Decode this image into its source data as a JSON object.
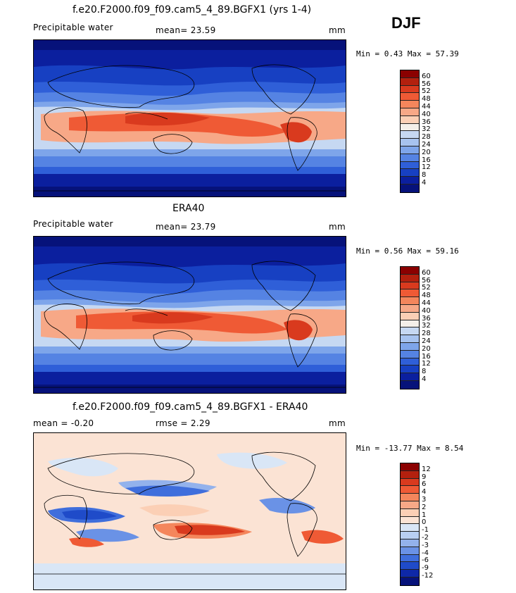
{
  "season": "DJF",
  "panels": [
    {
      "title": "f.e20.F2000.f09_f09.cam5_4_89.BGFX1 (yrs 1-4)",
      "left_label": "Precipitable water",
      "mid_label": "mean=   23.59",
      "right_label": "mm",
      "minmax": "Min =    0.43 Max =   57.39",
      "colorbar_labels": [
        "60",
        "56",
        "52",
        "48",
        "44",
        "40",
        "36",
        "32",
        "28",
        "24",
        "20",
        "16",
        "12",
        "8",
        "4"
      ],
      "colorbar_colors": [
        "#8b0000",
        "#b3200e",
        "#d93a1e",
        "#ef5a35",
        "#f4865c",
        "#f7a887",
        "#fbcfb5",
        "#f4efe9",
        "#c6d8f2",
        "#a7c3ef",
        "#7ea5ea",
        "#5583e3",
        "#2f5fd8",
        "#1740c2",
        "#0b1f9e",
        "#06127a"
      ]
    },
    {
      "title": "ERA40",
      "left_label": "Precipitable water",
      "mid_label": "mean=   23.79",
      "right_label": "mm",
      "minmax": "Min =    0.56 Max =   59.16",
      "colorbar_labels": [
        "60",
        "56",
        "52",
        "48",
        "44",
        "40",
        "36",
        "32",
        "28",
        "24",
        "20",
        "16",
        "12",
        "8",
        "4"
      ],
      "colorbar_colors": [
        "#8b0000",
        "#b3200e",
        "#d93a1e",
        "#ef5a35",
        "#f4865c",
        "#f7a887",
        "#fbcfb5",
        "#f4efe9",
        "#c6d8f2",
        "#a7c3ef",
        "#7ea5ea",
        "#5583e3",
        "#2f5fd8",
        "#1740c2",
        "#0b1f9e",
        "#06127a"
      ]
    },
    {
      "title": "f.e20.F2000.f09_f09.cam5_4_89.BGFX1 - ERA40",
      "left_label": "mean =   -0.20",
      "mid_label": "rmse =    2.29",
      "right_label": "mm",
      "minmax": "Min = -13.77 Max =    8.54",
      "colorbar_labels": [
        "12",
        "9",
        "6",
        "4",
        "3",
        "2",
        "1",
        "0",
        "-1",
        "-2",
        "-3",
        "-4",
        "-6",
        "-9",
        "-12"
      ],
      "colorbar_colors": [
        "#8b0000",
        "#b3200e",
        "#d93a1e",
        "#ef5a35",
        "#f4865c",
        "#f7a887",
        "#fbcfb5",
        "#fbe3d4",
        "#d9e6f6",
        "#b9cff2",
        "#93b2ec",
        "#6a92e6",
        "#3f6edc",
        "#1f4bc9",
        "#0e28a8",
        "#06127a"
      ]
    }
  ],
  "colors": {
    "deep_blue": "#06127a",
    "blue": "#2f5fd8",
    "light_blue": "#a7c3ef",
    "neutral": "#f4efe9",
    "peach": "#fbcfb5",
    "orange": "#ef5a35",
    "dark_red": "#b3200e"
  }
}
